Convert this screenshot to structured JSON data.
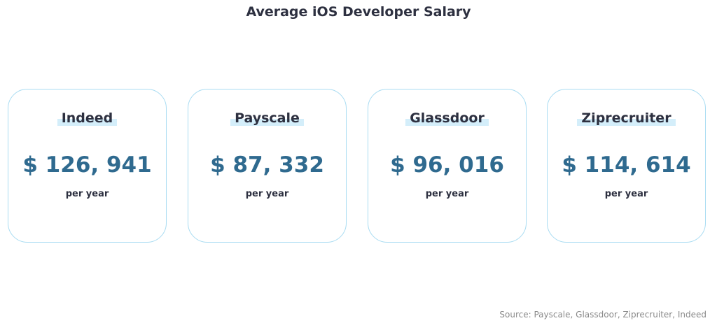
{
  "header": {
    "title": "Average iOS Developer Salary"
  },
  "cards": [
    {
      "name": "Indeed",
      "salary": "$ 126, 941",
      "period": "per year"
    },
    {
      "name": "Payscale",
      "salary": "$ 87, 332",
      "period": "per year"
    },
    {
      "name": "Glassdoor",
      "salary": "$ 96, 016",
      "period": "per year"
    },
    {
      "name": "Ziprecruiter",
      "salary": "$ 114, 614",
      "period": "per year"
    }
  ],
  "footer": {
    "source": "Source: Payscale, Glassdoor, Ziprecruiter, Indeed"
  }
}
